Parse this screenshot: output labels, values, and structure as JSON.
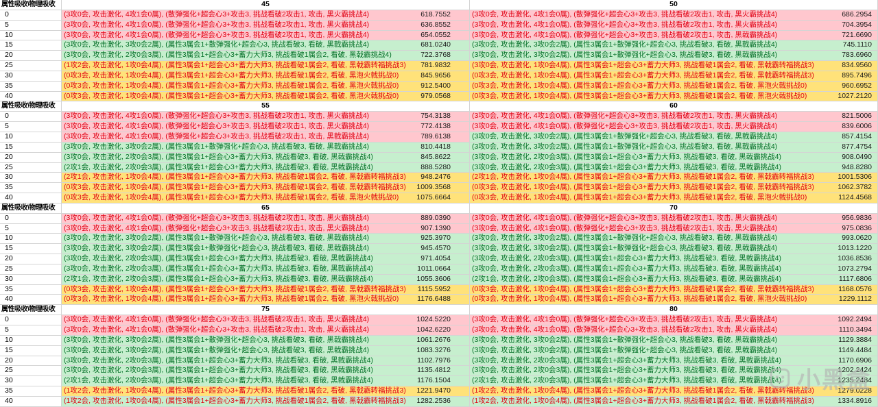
{
  "header_label": "属性吸收\\物理吸收",
  "watermark": {
    "text": "小黑盒"
  },
  "colors": {
    "bad_bg": "#ffc7ce",
    "bad_text": "#e00013",
    "good_bg": "#c6efce",
    "good_text": "#056f28",
    "warn_bg": "#ffe27a",
    "warn_text": "#e00013",
    "value_text": "#1a1a1a",
    "grid": "#d4d4d4"
  },
  "sections": [
    {
      "cols": [
        "45",
        "50"
      ],
      "rows": [
        {
          "label": "0",
          "left": {
            "text": "(3攻0会, 攻击激化, 4攻1会0属), (散弹强化+超会心3+攻击3, 挑战看破2攻击1, 攻击, 黑火霸挑战4)",
            "value": "618.7552",
            "style": "bad"
          },
          "right": {
            "text": "(3攻0会, 攻击激化, 4攻1会0属), (散弹强化+超会心3+攻击3, 挑战看破2攻击1, 攻击, 黑火霸挑战4)",
            "value": "686.2954",
            "style": "bad"
          }
        },
        {
          "label": "5",
          "left": {
            "text": "(3攻0会, 攻击激化, 4攻1会0属), (散弹强化+超会心3+攻击3, 挑战看破2攻击1, 攻击, 黑火霸挑战4)",
            "value": "636.8552",
            "style": "bad"
          },
          "right": {
            "text": "(3攻0会, 攻击激化, 4攻1会0属), (散弹强化+超会心3+攻击3, 挑战看破2攻击1, 攻击, 黑火霸挑战4)",
            "value": "704.3954",
            "style": "bad"
          }
        },
        {
          "label": "10",
          "left": {
            "text": "(3攻0会, 攻击激化, 4攻1会0属), (散弹强化+超会心3+攻击3, 挑战看破2攻击1, 攻击, 黑火霸挑战4)",
            "value": "654.0552",
            "style": "bad"
          },
          "right": {
            "text": "(3攻0会, 攻击激化, 4攻1会0属), (散弹强化+超会心3+攻击3, 挑战看破2攻击1, 攻击, 黑戟霸挑战4)",
            "value": "721.6690",
            "style": "bad"
          }
        },
        {
          "label": "15",
          "left": {
            "text": "(3攻0会, 攻击激化, 3攻0会2属), (属性3属会1+散弹强化+超会心3, 挑战看破3, 看破, 黑戟霸挑战4)",
            "value": "681.0240",
            "style": "good"
          },
          "right": {
            "text": "(3攻0会, 攻击激化, 3攻0会2属), (属性3属会1+散弹强化+超会心3, 挑战看破3, 看破, 黑戟霸挑战4)",
            "value": "745.1110",
            "style": "good"
          }
        },
        {
          "label": "20",
          "left": {
            "text": "(3攻0会, 攻击激化, 2攻0会3属), (属性3属会1+超会心3+蓄力大师3, 挑战看破1属会2, 看破, 黑戟霸挑战4)",
            "value": "722.3768",
            "style": "good"
          },
          "right": {
            "text": "(3攻0会, 攻击激化, 3攻0会2属), (属性3属会1+散弹强化+超会心3, 挑战看破3, 看破, 黑戟霸挑战4)",
            "value": "783.6960",
            "style": "good"
          }
        },
        {
          "label": "25",
          "left": {
            "text": "(1攻2会, 攻击激化, 1攻0会4属), (属性3属会1+超会心3+蓄力大师3, 挑战看破1属会2, 看破, 黑戟霸转福挑战3)",
            "value": "781.9832",
            "style": "warn"
          },
          "right": {
            "text": "(3攻0会, 攻击激化, 1攻0会4属), (属性3属会1+超会心3+蓄力大师3, 挑战看破1属会2, 看破, 黑戟霸转福挑战3)",
            "value": "834.9560",
            "style": "warn"
          }
        },
        {
          "label": "30",
          "left": {
            "text": "(0攻3会, 攻击激化, 1攻0会4属), (属性3属会1+超会心3+蓄力大师3, 挑战看破1属会2, 看破, 黑泡火戟挑战0)",
            "value": "845.9656",
            "style": "warn"
          },
          "right": {
            "text": "(0攻3会, 攻击激化, 1攻0会4属), (属性3属会1+超会心3+蓄力大师3, 挑战看破1属会2, 看破, 黑戟霸转福挑战3)",
            "value": "895.7496",
            "style": "warn"
          }
        },
        {
          "label": "35",
          "left": {
            "text": "(0攻3会, 攻击激化, 1攻0会4属), (属性3属会1+超会心3+蓄力大师3, 挑战看破1属会2, 看破, 黑泡火戟挑战0)",
            "value": "912.5400",
            "style": "warn"
          },
          "right": {
            "text": "(0攻3会, 攻击激化, 1攻0会4属), (属性3属会1+超会心3+蓄力大师3, 挑战看破1属会2, 看破, 黑泡火戟挑战0)",
            "value": "960.6952",
            "style": "warn"
          }
        },
        {
          "label": "40",
          "left": {
            "text": "(0攻3会, 攻击激化, 1攻0会4属), (属性3属会1+超会心3+蓄力大师3, 挑战看破1属会2, 看破, 黑泡火戟挑战0)",
            "value": "979.0568",
            "style": "warn"
          },
          "right": {
            "text": "(0攻3会, 攻击激化, 1攻0会4属), (属性3属会1+超会心3+蓄力大师3, 挑战看破1属会2, 看破, 黑泡火戟挑战0)",
            "value": "1027.2120",
            "style": "warn"
          }
        }
      ]
    },
    {
      "cols": [
        "55",
        "60"
      ],
      "rows": [
        {
          "label": "0",
          "left": {
            "text": "(3攻0会, 攻击激化, 4攻1会0属), (散弹强化+超会心3+攻击3, 挑战看破2攻击1, 攻击, 黑火霸挑战4)",
            "value": "754.3138",
            "style": "bad"
          },
          "right": {
            "text": "(3攻0会, 攻击激化, 4攻1会0属), (散弹强化+超会心3+攻击3, 挑战看破2攻击1, 攻击, 黑火霸挑战4)",
            "value": "821.5006",
            "style": "bad"
          }
        },
        {
          "label": "5",
          "left": {
            "text": "(3攻0会, 攻击激化, 4攻1会0属), (散弹强化+超会心3+攻击3, 挑战看破2攻击1, 攻击, 黑火霸挑战4)",
            "value": "772.4138",
            "style": "bad"
          },
          "right": {
            "text": "(3攻0会, 攻击激化, 4攻1会0属), (散弹强化+超会心3+攻击3, 挑战看破2攻击1, 攻击, 黑火霸挑战4)",
            "value": "839.6006",
            "style": "bad"
          }
        },
        {
          "label": "10",
          "left": {
            "text": "(3攻0会, 攻击激化, 4攻1会0属), (散弹强化+超会心3+攻击3, 挑战看破2攻击1, 攻击, 黑戟霸挑战4)",
            "value": "789.6138",
            "style": "bad"
          },
          "right": {
            "text": "(3攻0会, 攻击激化, 3攻0会2属), (属性3属会1+散弹强化+超会心3, 挑战看破3, 看破, 黑戟霸挑战4)",
            "value": "857.4154",
            "style": "good"
          }
        },
        {
          "label": "15",
          "left": {
            "text": "(3攻0会, 攻击激化, 3攻0会2属), (属性3属会1+散弹强化+超会心3, 挑战看破3, 看破, 黑戟霸挑战4)",
            "value": "810.4418",
            "style": "good"
          },
          "right": {
            "text": "(3攻0会, 攻击激化, 3攻0会2属), (属性3属会1+散弹强化+超会心3, 挑战看破3, 看破, 黑戟霸挑战4)",
            "value": "877.4754",
            "style": "good"
          }
        },
        {
          "label": "20",
          "left": {
            "text": "(3攻0会, 攻击激化, 2攻0会3属), (属性3属会1+超会心3+蓄力大师3, 挑战看破3, 看破, 黑戟霸挑战4)",
            "value": "845.8622",
            "style": "good"
          },
          "right": {
            "text": "(3攻0会, 攻击激化, 2攻0会3属), (属性3属会1+超会心3+蓄力大师3, 挑战看破3, 看破, 黑戟霸挑战4)",
            "value": "908.0490",
            "style": "good"
          }
        },
        {
          "label": "25",
          "left": {
            "text": "(2攻1会, 攻击激化, 2攻0会3属), (属性3属会1+超会心3+蓄力大师3, 挑战看破3, 看破, 黑戟霸挑战4)",
            "value": "888.5280",
            "style": "good"
          },
          "right": {
            "text": "(3攻0会, 攻击激化, 2攻0会3属), (属性3属会1+超会心3+蓄力大师3, 挑战看破3, 看破, 黑戟霸挑战4)",
            "value": "948.8280",
            "style": "good"
          }
        },
        {
          "label": "30",
          "left": {
            "text": "(2攻1会, 攻击激化, 1攻0会4属), (属性3属会1+超会心3+蓄力大师3, 挑战看破1属会2, 看破, 黑戟霸转福挑战3)",
            "value": "948.2476",
            "style": "warn"
          },
          "right": {
            "text": "(2攻1会, 攻击激化, 1攻0会4属), (属性3属会1+超会心3+蓄力大师3, 挑战看破1属会2, 看破, 黑戟霸转福挑战3)",
            "value": "1001.5306",
            "style": "warn"
          }
        },
        {
          "label": "35",
          "left": {
            "text": "(0攻3会, 攻击激化, 1攻0会4属), (属性3属会1+超会心3+蓄力大师3, 挑战看破1属会2, 看破, 黑戟霸转福挑战3)",
            "value": "1009.3568",
            "style": "warn"
          },
          "right": {
            "text": "(0攻3会, 攻击激化, 1攻0会4属), (属性3属会1+超会心3+蓄力大师3, 挑战看破1属会2, 看破, 黑戟霸转福挑战3)",
            "value": "1062.3782",
            "style": "warn"
          }
        },
        {
          "label": "40",
          "left": {
            "text": "(0攻3会, 攻击激化, 1攻0会4属), (属性3属会1+超会心3+蓄力大师3, 挑战看破1属会2, 看破, 黑泡火戟挑战0)",
            "value": "1075.6664",
            "style": "warn"
          },
          "right": {
            "text": "(0攻3会, 攻击激化, 1攻0会4属), (属性3属会1+超会心3+蓄力大师3, 挑战看破1属会2, 看破, 黑泡火戟挑战0)",
            "value": "1124.4568",
            "style": "warn"
          }
        }
      ]
    },
    {
      "cols": [
        "65",
        "70"
      ],
      "rows": [
        {
          "label": "0",
          "left": {
            "text": "(3攻0会, 攻击激化, 4攻1会0属), (散弹强化+超会心3+攻击3, 挑战看破2攻击1, 攻击, 黑火霸挑战4)",
            "value": "889.0390",
            "style": "bad"
          },
          "right": {
            "text": "(3攻0会, 攻击激化, 4攻1会0属), (散弹强化+超会心3+攻击3, 挑战看破2攻击1, 攻击, 黑火霸挑战4)",
            "value": "956.9836",
            "style": "bad"
          }
        },
        {
          "label": "5",
          "left": {
            "text": "(3攻0会, 攻击激化, 4攻1会0属), (散弹强化+超会心3+攻击3, 挑战看破2攻击1, 攻击, 黑火霸挑战4)",
            "value": "907.1390",
            "style": "bad"
          },
          "right": {
            "text": "(3攻0会, 攻击激化, 4攻1会0属), (散弹强化+超会心3+攻击3, 挑战看破2攻击1, 攻击, 黑火霸挑战4)",
            "value": "975.0836",
            "style": "bad"
          }
        },
        {
          "label": "10",
          "left": {
            "text": "(3攻0会, 攻击激化, 3攻0会2属), (属性3属会1+散弹强化+超会心3, 挑战看破3, 看破, 黑戟霸挑战4)",
            "value": "925.3970",
            "style": "good"
          },
          "right": {
            "text": "(3攻0会, 攻击激化, 3攻0会2属), (属性3属会1+散弹强化+超会心3, 挑战看破3, 看破, 黑戟霸挑战4)",
            "value": "993.0620",
            "style": "good"
          }
        },
        {
          "label": "15",
          "left": {
            "text": "(3攻0会, 攻击激化, 3攻0会2属), (属性3属会1+散弹强化+超会心3, 挑战看破3, 看破, 黑戟霸挑战4)",
            "value": "945.4570",
            "style": "good"
          },
          "right": {
            "text": "(3攻0会, 攻击激化, 3攻0会2属), (属性3属会1+散弹强化+超会心3, 挑战看破3, 看破, 黑戟霸挑战4)",
            "value": "1013.1220",
            "style": "good"
          }
        },
        {
          "label": "20",
          "left": {
            "text": "(3攻0会, 攻击激化, 2攻0会3属), (属性3属会1+超会心3+蓄力大师3, 挑战看破3, 看破, 黑戟霸挑战4)",
            "value": "971.4054",
            "style": "good"
          },
          "right": {
            "text": "(3攻0会, 攻击激化, 2攻0会3属), (属性3属会1+超会心3+蓄力大师3, 挑战看破3, 看破, 黑戟霸挑战4)",
            "value": "1036.8536",
            "style": "good"
          }
        },
        {
          "label": "25",
          "left": {
            "text": "(3攻0会, 攻击激化, 2攻0会3属), (属性3属会1+超会心3+蓄力大师3, 挑战看破3, 看破, 黑戟霸挑战4)",
            "value": "1011.0664",
            "style": "good"
          },
          "right": {
            "text": "(3攻0会, 攻击激化, 2攻0会3属), (属性3属会1+超会心3+蓄力大师3, 挑战看破3, 看破, 黑戟霸挑战4)",
            "value": "1073.2794",
            "style": "good"
          }
        },
        {
          "label": "30",
          "left": {
            "text": "(2攻1会, 攻击激化, 2攻0会3属), (属性3属会1+超会心3+蓄力大师3, 挑战看破3, 看破, 黑戟霸挑战4)",
            "value": "1055.3606",
            "style": "good"
          },
          "right": {
            "text": "(2攻1会, 攻击激化, 2攻0会3属), (属性3属会1+超会心3+蓄力大师3, 挑战看破3, 看破, 黑戟霸挑战4)",
            "value": "1117.6806",
            "style": "good"
          }
        },
        {
          "label": "35",
          "left": {
            "text": "(0攻3会, 攻击激化, 1攻0会4属), (属性3属会1+超会心3+蓄力大师3, 挑战看破1属会2, 看破, 黑戟霸转福挑战3)",
            "value": "1115.5952",
            "style": "warn"
          },
          "right": {
            "text": "(0攻3会, 攻击激化, 1攻0会4属), (属性3属会1+超会心3+蓄力大师3, 挑战看破1属会2, 看破, 黑戟霸转福挑战3)",
            "value": "1168.0576",
            "style": "warn"
          }
        },
        {
          "label": "40",
          "left": {
            "text": "(0攻3会, 攻击激化, 1攻0会4属), (属性3属会1+超会心3+蓄力大师3, 挑战看破1属会2, 看破, 黑泡火戟挑战0)",
            "value": "1176.6488",
            "style": "warn"
          },
          "right": {
            "text": "(0攻3会, 攻击激化, 1攻0会4属), (属性3属会1+超会心3+蓄力大师3, 挑战看破1属会2, 看破, 黑泡火戟挑战0)",
            "value": "1229.1112",
            "style": "warn"
          }
        }
      ]
    },
    {
      "cols": [
        "75",
        "80"
      ],
      "rows": [
        {
          "label": "0",
          "left": {
            "text": "(3攻0会, 攻击激化, 4攻1会0属), (散弹强化+超会心3+攻击3, 挑战看破2攻击1, 攻击, 黑火霸挑战4)",
            "value": "1024.5220",
            "style": "bad"
          },
          "right": {
            "text": "(3攻0会, 攻击激化, 4攻1会0属), (散弹强化+超会心3+攻击3, 挑战看破2攻击1, 攻击, 黑火霸挑战4)",
            "value": "1092.2494",
            "style": "bad"
          }
        },
        {
          "label": "5",
          "left": {
            "text": "(3攻0会, 攻击激化, 4攻1会0属), (散弹强化+超会心3+攻击3, 挑战看破2攻击1, 攻击, 黑火霸挑战4)",
            "value": "1042.6220",
            "style": "bad"
          },
          "right": {
            "text": "(3攻0会, 攻击激化, 4攻1会0属), (散弹强化+超会心3+攻击3, 挑战看破2攻击1, 攻击, 黑火霸挑战4)",
            "value": "1110.3494",
            "style": "bad"
          }
        },
        {
          "label": "10",
          "left": {
            "text": "(3攻0会, 攻击激化, 3攻0会2属), (属性3属会1+散弹强化+超会心3, 挑战看破3, 看破, 黑戟霸挑战4)",
            "value": "1061.2676",
            "style": "good"
          },
          "right": {
            "text": "(3攻0会, 攻击激化, 3攻0会2属), (属性3属会1+散弹强化+超会心3, 挑战看破3, 看破, 黑戟霸挑战4)",
            "value": "1129.3884",
            "style": "good"
          }
        },
        {
          "label": "15",
          "left": {
            "text": "(3攻0会, 攻击激化, 3攻0会2属), (属性3属会1+散弹强化+超会心3, 挑战看破3, 看破, 黑戟霸挑战4)",
            "value": "1083.3276",
            "style": "good"
          },
          "right": {
            "text": "(3攻0会, 攻击激化, 3攻0会2属), (属性3属会1+散弹强化+超会心3, 挑战看破3, 看破, 黑戟霸挑战4)",
            "value": "1149.4484",
            "style": "good"
          }
        },
        {
          "label": "20",
          "left": {
            "text": "(3攻0会, 攻击激化, 2攻0会3属), (属性3属会1+超会心3+蓄力大师3, 挑战看破3, 看破, 黑戟霸挑战4)",
            "value": "1102.7976",
            "style": "good"
          },
          "right": {
            "text": "(3攻0会, 攻击激化, 2攻0会3属), (属性3属会1+超会心3+蓄力大师3, 挑战看破3, 看破, 黑戟霸挑战4)",
            "value": "1170.6906",
            "style": "good"
          }
        },
        {
          "label": "25",
          "left": {
            "text": "(3攻0会, 攻击激化, 2攻0会3属), (属性3属会1+超会心3+蓄力大师3, 挑战看破3, 看破, 黑戟霸挑战4)",
            "value": "1135.4812",
            "style": "good"
          },
          "right": {
            "text": "(3攻0会, 攻击激化, 2攻0会3属), (属性3属会1+超会心3+蓄力大师3, 挑战看破3, 看破, 黑戟霸挑战4)",
            "value": "1202.2424",
            "style": "good"
          }
        },
        {
          "label": "30",
          "left": {
            "text": "(2攻1会, 攻击激化, 2攻0会3属), (属性3属会1+超会心3+蓄力大师3, 挑战看破3, 看破, 黑戟霸挑战4)",
            "value": "1176.1504",
            "style": "good"
          },
          "right": {
            "text": "(2攻1会, 攻击激化, 2攻0会3属), (属性3属会1+超会心3+蓄力大师3, 挑战看破3, 看破, 黑戟霸挑战4)",
            "value": "1235.2484",
            "style": "good"
          }
        },
        {
          "label": "35",
          "left": {
            "text": "(1攻2会, 攻击激化, 1攻0会4属), (属性3属会1+超会心3+蓄力大师3, 挑战看破1属会2, 看破, 黑戟霸转福挑战3)",
            "value": "1221.9470",
            "style": "warn"
          },
          "right": {
            "text": "(1攻2会, 攻击激化, 1攻0会4属), (属性3属会1+超会心3+蓄力大师3, 挑战看破1属会2, 看破, 黑戟霸转福挑战3)",
            "value": "1279.0228",
            "style": "warn"
          }
        },
        {
          "label": "40",
          "left": {
            "text": "(1攻2会, 攻击激化, 1攻0会4属), (属性3属会1+超会心3+蓄力大师3, 挑战看破1属会2, 看破, 黑戟霸转福挑战3)",
            "value": "1282.2536",
            "style": "mix"
          },
          "right": {
            "text": "(1攻2会, 攻击激化, 1攻0会4属), (属性3属会1+超会心3+蓄力大师3, 挑战看破1属会2, 看破, 黑戟霸转福挑战3)",
            "value": "1334.8916",
            "style": "mix"
          }
        }
      ]
    }
  ]
}
